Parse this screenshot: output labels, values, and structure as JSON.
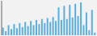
{
  "chart_data": {
    "type": "bar",
    "values": [
      15,
      8,
      20,
      12,
      22,
      14,
      24,
      16,
      26,
      18,
      28,
      20,
      30,
      22,
      32,
      24,
      34,
      26,
      36,
      28,
      55,
      30,
      58,
      32,
      60,
      35,
      62,
      38,
      65,
      20,
      45,
      10,
      50,
      5
    ],
    "color": "#5baee0",
    "ylim": [
      0,
      68
    ],
    "grid": false,
    "tick_labels": false
  }
}
